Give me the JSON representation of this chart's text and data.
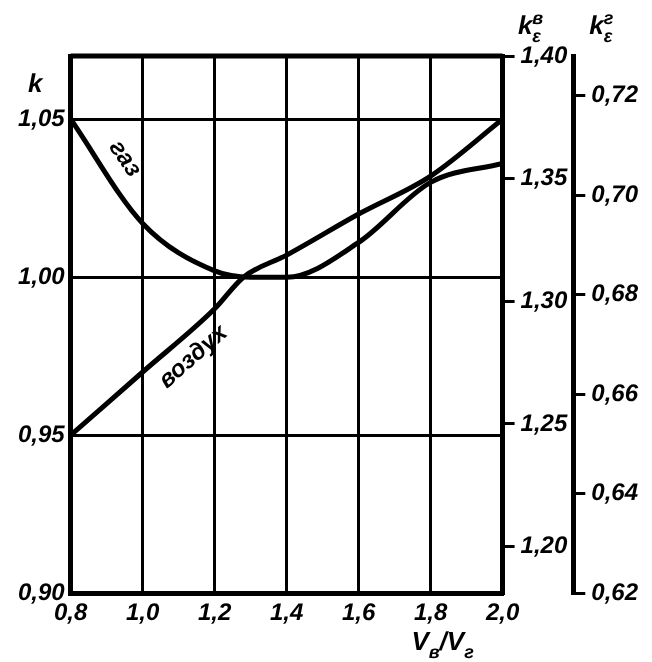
{
  "chart_data": {
    "type": "line",
    "xlabel": "V$_{в}$/V$_{г}$",
    "ylabel": "k",
    "y2label": "k$_{ε}$$^{в}$",
    "y3label": "k$_{ε}$$^{г}$",
    "xlim": [
      0.8,
      2.0
    ],
    "xticks": [
      {
        "value": 0.8,
        "label": "0,8"
      },
      {
        "value": 1.0,
        "label": "1,0"
      },
      {
        "value": 1.2,
        "label": "1,2"
      },
      {
        "value": 1.4,
        "label": "1,4"
      },
      {
        "value": 1.6,
        "label": "1,6"
      },
      {
        "value": 1.8,
        "label": "1,8"
      },
      {
        "value": 2.0,
        "label": "2,0"
      }
    ],
    "ylim": [
      0.9,
      1.07
    ],
    "yticks": [
      {
        "value": 0.9,
        "label": "0,90"
      },
      {
        "value": 0.95,
        "label": "0,95"
      },
      {
        "value": 1.0,
        "label": "1,00"
      },
      {
        "value": 1.05,
        "label": "1,05"
      }
    ],
    "y2lim": [
      1.181,
      1.4
    ],
    "y2ticks": [
      {
        "value": 1.2,
        "label": "1,20"
      },
      {
        "value": 1.25,
        "label": "1,25"
      },
      {
        "value": 1.3,
        "label": "1,30"
      },
      {
        "value": 1.35,
        "label": "1,35"
      },
      {
        "value": 1.4,
        "label": "1,40"
      }
    ],
    "y3lim": [
      0.62,
      0.728
    ],
    "y3ticks": [
      {
        "value": 0.62,
        "label": "0,62"
      },
      {
        "value": 0.64,
        "label": "0,64"
      },
      {
        "value": 0.66,
        "label": "0,66"
      },
      {
        "value": 0.68,
        "label": "0,68"
      },
      {
        "value": 0.7,
        "label": "0,70"
      },
      {
        "value": 0.72,
        "label": "0,72"
      }
    ],
    "grid": true,
    "legend": false,
    "marker": "none",
    "line_style": "solid",
    "series": [
      {
        "name": "газ",
        "color": "#000000",
        "x": [
          0.8,
          1.0,
          1.2,
          1.3,
          1.4,
          1.6,
          1.8,
          2.0
        ],
        "values": [
          1.05,
          1.017,
          1.002,
          1.0,
          1.0,
          1.011,
          1.03,
          1.036
        ]
      },
      {
        "name": "воздух",
        "color": "#000000",
        "x": [
          0.8,
          1.0,
          1.2,
          1.28,
          1.4,
          1.6,
          1.8,
          2.0
        ],
        "values": [
          0.95,
          0.97,
          0.99,
          1.0,
          1.007,
          1.02,
          1.032,
          1.05
        ]
      }
    ]
  }
}
